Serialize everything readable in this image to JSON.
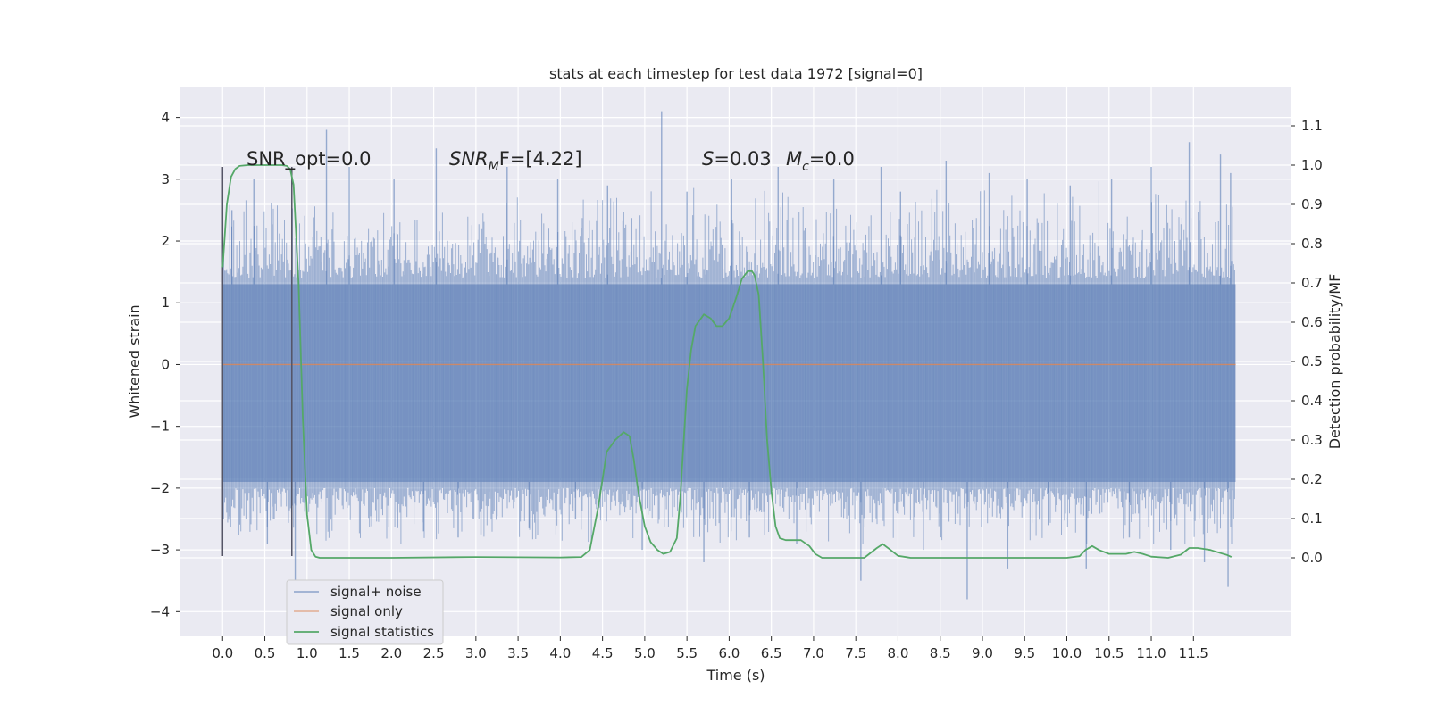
{
  "chart_data": {
    "type": "line",
    "title": "stats at each timestep for test data 1972 [signal=0]",
    "xlabel": "Time (s)",
    "ylabel": "Whitened strain",
    "y2label": "Detection probability/MF",
    "xlim": [
      -0.5,
      12.65
    ],
    "ylim": [
      -4.4,
      4.5
    ],
    "y2lim": [
      -0.2,
      1.2
    ],
    "grid": true,
    "legend_position": "lower-left",
    "x_ticks": [
      "0.0",
      "0.5",
      "1.0",
      "1.5",
      "2.0",
      "2.5",
      "3.0",
      "3.5",
      "4.0",
      "4.5",
      "5.0",
      "5.5",
      "6.0",
      "6.5",
      "7.0",
      "7.5",
      "8.0",
      "8.5",
      "9.0",
      "9.5",
      "10.0",
      "10.5",
      "11.0",
      "11.5"
    ],
    "y_ticks": [
      "4",
      "3",
      "2",
      "1",
      "0",
      "−1",
      "−2",
      "−3",
      "−4"
    ],
    "y2_ticks": [
      "1.1",
      "1.0",
      "0.9",
      "0.8",
      "0.7",
      "0.6",
      "0.5",
      "0.4",
      "0.3",
      "0.2",
      "0.1",
      "0.0"
    ],
    "annotations": {
      "snr_opt": "SNR_opt=0.0",
      "snr_mf_base": "SNR",
      "snr_mf_sub": "M",
      "snr_mf_tail": "F=[4.22]",
      "s_label": "S",
      "s_value": "=0.03",
      "mc_base": "M",
      "mc_sub": "c",
      "mc_value": "=0.0"
    },
    "series": [
      {
        "name": "signal+ noise",
        "color": "#4c72b0",
        "axis": "left",
        "x_range": [
          0.0,
          12.0
        ],
        "envelope": [
          -1.9,
          1.3
        ],
        "spikes": [
          [
            0.11,
            2.5
          ],
          [
            0.37,
            3.0
          ],
          [
            0.53,
            -2.9
          ],
          [
            0.86,
            -3.5
          ],
          [
            1.23,
            3.8
          ],
          [
            1.5,
            3.2
          ],
          [
            2.03,
            3.0
          ],
          [
            2.38,
            -2.7
          ],
          [
            2.53,
            3.5
          ],
          [
            2.79,
            -2.8
          ],
          [
            3.06,
            -2.75
          ],
          [
            3.37,
            3.2
          ],
          [
            3.63,
            -2.65
          ],
          [
            3.97,
            3.0
          ],
          [
            4.18,
            -2.5
          ],
          [
            4.56,
            2.9
          ],
          [
            4.97,
            -3.0
          ],
          [
            5.2,
            4.1
          ],
          [
            5.5,
            2.8
          ],
          [
            5.7,
            -3.2
          ],
          [
            6.03,
            3.0
          ],
          [
            6.24,
            -2.8
          ],
          [
            6.58,
            3.2
          ],
          [
            6.8,
            -2.9
          ],
          [
            7.24,
            3.0
          ],
          [
            7.56,
            -3.5
          ],
          [
            7.8,
            3.2
          ],
          [
            8.03,
            2.8
          ],
          [
            8.3,
            -3.0
          ],
          [
            8.57,
            3.3
          ],
          [
            8.82,
            -3.8
          ],
          [
            9.08,
            3.1
          ],
          [
            9.3,
            -3.3
          ],
          [
            9.53,
            3.0
          ],
          [
            9.78,
            -2.6
          ],
          [
            10.04,
            2.9
          ],
          [
            10.23,
            -3.3
          ],
          [
            10.53,
            3.0
          ],
          [
            10.74,
            -2.8
          ],
          [
            11.0,
            3.2
          ],
          [
            11.23,
            -3.0
          ],
          [
            11.45,
            3.6
          ],
          [
            11.63,
            -3.2
          ],
          [
            11.82,
            3.4
          ],
          [
            11.91,
            -3.6
          ],
          [
            11.94,
            3.1
          ]
        ]
      },
      {
        "name": "signal only",
        "color": "#dd8452",
        "axis": "left",
        "x": [
          0.0,
          12.0
        ],
        "values": [
          0.0,
          0.0
        ]
      },
      {
        "name": "signal statistics",
        "color": "#55a868",
        "axis": "right",
        "x": [
          0.0,
          0.05,
          0.1,
          0.15,
          0.2,
          0.3,
          0.5,
          0.7,
          0.76,
          0.8,
          0.84,
          0.9,
          0.95,
          1.0,
          1.05,
          1.1,
          1.15,
          1.3,
          2.0,
          3.0,
          4.0,
          4.25,
          4.35,
          4.45,
          4.55,
          4.65,
          4.75,
          4.82,
          4.87,
          4.93,
          5.0,
          5.07,
          5.15,
          5.22,
          5.3,
          5.38,
          5.42,
          5.5,
          5.55,
          5.6,
          5.7,
          5.78,
          5.85,
          5.92,
          6.0,
          6.08,
          6.15,
          6.22,
          6.27,
          6.3,
          6.35,
          6.4,
          6.45,
          6.5,
          6.55,
          6.6,
          6.67,
          6.75,
          6.85,
          6.95,
          7.02,
          7.1,
          7.3,
          7.6,
          7.75,
          7.82,
          7.9,
          8.0,
          8.15,
          8.5,
          9.0,
          9.5,
          10.0,
          10.15,
          10.22,
          10.3,
          10.38,
          10.5,
          10.7,
          10.8,
          10.9,
          11.0,
          11.2,
          11.35,
          11.45,
          11.55,
          11.7,
          11.82,
          11.9,
          11.95
        ],
        "values": [
          0.74,
          0.9,
          0.97,
          0.99,
          0.998,
          1.0,
          1.0,
          1.0,
          0.998,
          0.99,
          0.95,
          0.7,
          0.35,
          0.11,
          0.02,
          0.003,
          0.0,
          0.0,
          0.0,
          0.002,
          0.001,
          0.002,
          0.02,
          0.13,
          0.27,
          0.3,
          0.32,
          0.31,
          0.25,
          0.16,
          0.08,
          0.04,
          0.02,
          0.01,
          0.015,
          0.05,
          0.15,
          0.43,
          0.53,
          0.59,
          0.62,
          0.61,
          0.59,
          0.59,
          0.61,
          0.66,
          0.71,
          0.73,
          0.73,
          0.72,
          0.67,
          0.5,
          0.3,
          0.17,
          0.08,
          0.05,
          0.045,
          0.045,
          0.045,
          0.03,
          0.01,
          0.0,
          0.0,
          0.0,
          0.025,
          0.035,
          0.022,
          0.005,
          0.0,
          0.0,
          0.0,
          0.0,
          0.0,
          0.004,
          0.02,
          0.03,
          0.02,
          0.01,
          0.01,
          0.015,
          0.01,
          0.003,
          0.0,
          0.008,
          0.025,
          0.025,
          0.02,
          0.012,
          0.007,
          0.002
        ]
      }
    ],
    "vertical_markers": [
      {
        "x": 0.0,
        "y_range": [
          -3.1,
          3.2
        ]
      },
      {
        "x": 0.82,
        "y_range": [
          -3.1,
          3.2
        ]
      }
    ]
  }
}
